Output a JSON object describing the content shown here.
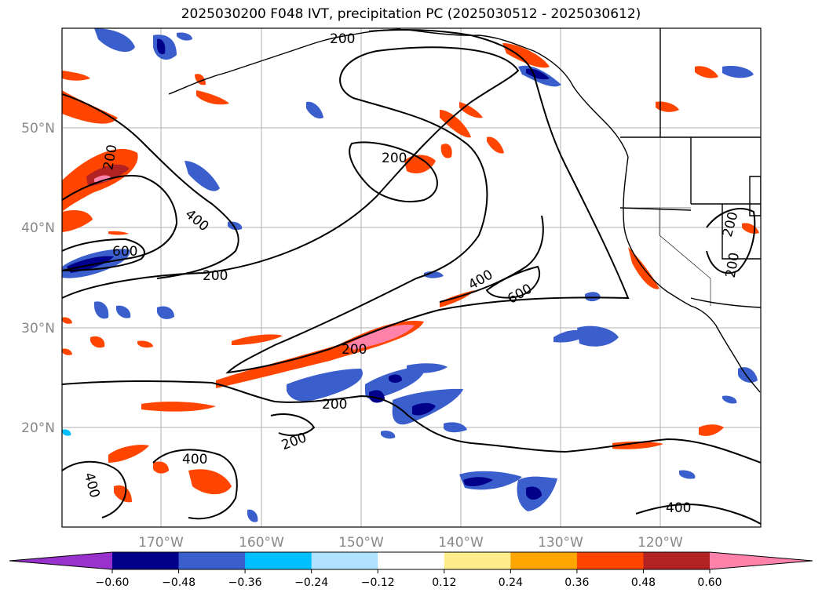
{
  "title": "2025030200 F048 IVT, precipitation PC (2025030512 - 2025030612)",
  "map": {
    "lat_labels": [
      "50°N",
      "40°N",
      "30°N",
      "20°N"
    ],
    "lon_labels": [
      "170°W",
      "160°W",
      "150°W",
      "140°W",
      "130°W",
      "120°W"
    ],
    "contour_labels": [
      "200",
      "200",
      "200",
      "400",
      "600",
      "200",
      "400",
      "600",
      "200",
      "200",
      "200",
      "400",
      "400",
      "400",
      "200",
      "200"
    ],
    "land_color": "#ffffff",
    "grid_color": "#b0b0b0"
  },
  "colorbar": {
    "ticks": [
      "−0.60",
      "−0.48",
      "−0.36",
      "−0.24",
      "−0.12",
      "0.12",
      "0.24",
      "0.36",
      "0.48",
      "0.60"
    ],
    "colors": [
      "#9932cc",
      "#00008b",
      "#3a5fcd",
      "#00bfff",
      "#b0e2ff",
      "#ffffff",
      "#ffec8b",
      "#ffa500",
      "#ff4500",
      "#b22222",
      "#ff82ab"
    ]
  }
}
